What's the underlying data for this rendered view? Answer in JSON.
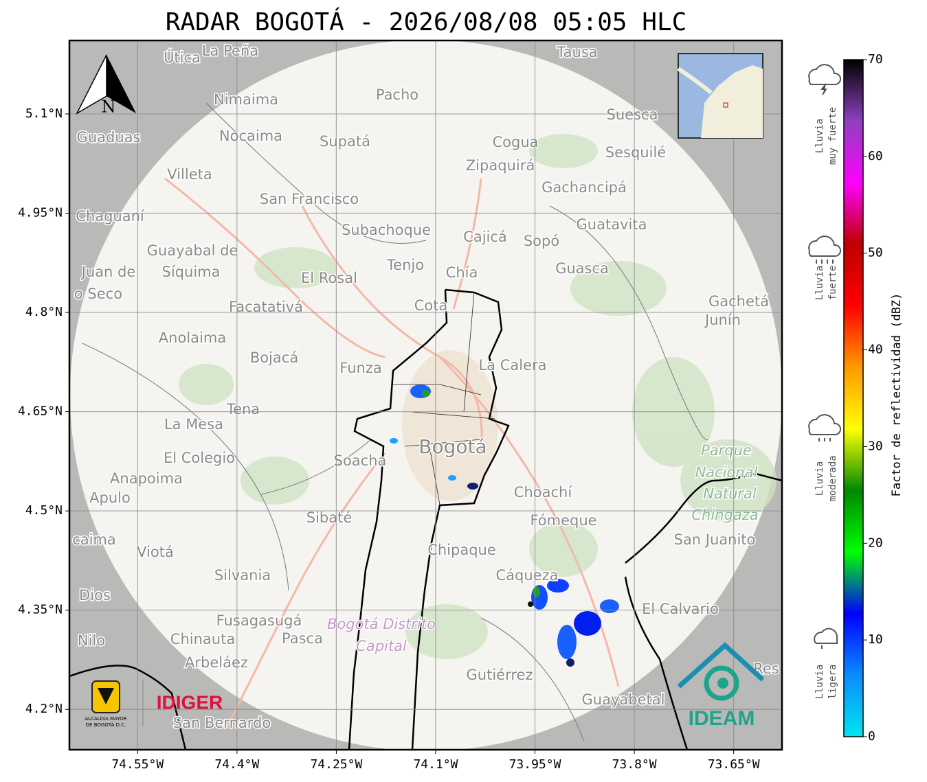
{
  "title": "RADAR BOGOTÁ - 2026/08/08 05:05 HLC",
  "map": {
    "xlim": [
      -74.653,
      -73.577
    ],
    "ylim": [
      4.139,
      5.211
    ],
    "xticks": [
      {
        "value": -74.55,
        "label": "74.55°W"
      },
      {
        "value": -74.4,
        "label": "74.4°W"
      },
      {
        "value": -74.25,
        "label": "74.25°W"
      },
      {
        "value": -74.1,
        "label": "74.1°W"
      },
      {
        "value": -73.95,
        "label": "73.95°W"
      },
      {
        "value": -73.8,
        "label": "73.8°W"
      },
      {
        "value": -73.65,
        "label": "73.65°W"
      }
    ],
    "yticks": [
      {
        "value": 5.1,
        "label": "5.1°N"
      },
      {
        "value": 4.95,
        "label": "4.95°N"
      },
      {
        "value": 4.8,
        "label": "4.8°N"
      },
      {
        "value": 4.65,
        "label": "4.65°N"
      },
      {
        "value": 4.5,
        "label": "4.5°N"
      },
      {
        "value": 4.35,
        "label": "4.35°N"
      },
      {
        "value": 4.2,
        "label": "4.2°N"
      }
    ],
    "places": [
      "Útica",
      "La Peña",
      "Tausa",
      "Pacho",
      "Nimaima",
      "Guaduas",
      "Nocaima",
      "Supatá",
      "Cogua",
      "Suesca",
      "Sesquilé",
      "Villeta",
      "Zipaquirá",
      "Gachancipá",
      "San Francisco",
      "Chaguaní",
      "Guatavita",
      "Subachoque",
      "Cajicá",
      "Sopó",
      "Guayabal de",
      "Síquima",
      "Juan de",
      "Tenjo",
      "Chía",
      "Guasca",
      "o Seco",
      "El Rosal",
      "Facatativá",
      "Cota",
      "Gachetá",
      "Junín",
      "Anolaima",
      "Bojacá",
      "Funza",
      "La Calera",
      "Tena",
      "La Mesa",
      "Bogotá",
      "Parque",
      "Nacional",
      "Natural",
      "Chingaza",
      "Soacha",
      "El Colegio",
      "Anapoima",
      "Apulo",
      "Choachí",
      "Sibaté",
      "Fómeque",
      "San Juanito",
      "caima",
      "Viotá",
      "Chipaque",
      "Silvania",
      "Cáqueza",
      "Dios",
      "El Calvario",
      "Fusagasugá",
      "Bogotá Distrito",
      "Capital",
      "Chinauta",
      "Pasca",
      "Nilo",
      "Arbeláez",
      "Gutiérrez",
      "Res",
      "Guayabetal",
      "San Bernardo"
    ],
    "compass": "N",
    "logos": {
      "alcaldia": [
        "ALCALDÍA MAYOR",
        "DE BOGOTÁ D.C."
      ],
      "idiger": "IDIGER",
      "ideam": "IDEAM"
    }
  },
  "colorbar": {
    "label": "Factor de reflectividad (dBZ)",
    "lim": [
      0,
      70
    ],
    "ticks": [
      0,
      10,
      20,
      30,
      40,
      50,
      60,
      70
    ],
    "colors": [
      "#00e5f0",
      "#0a8cff",
      "#0000ff",
      "#00ff00",
      "#008800",
      "#ffff00",
      "#ff9900",
      "#ff0000",
      "#c00000",
      "#ff00ff",
      "#9040c0",
      "#000000"
    ]
  },
  "legend": [
    [
      "Lluvia",
      "muy fuerte"
    ],
    [
      "Lluvia",
      "fuerte"
    ],
    [
      "Lluvia",
      "moderada"
    ],
    [
      "Lluvia",
      "ligera"
    ]
  ]
}
